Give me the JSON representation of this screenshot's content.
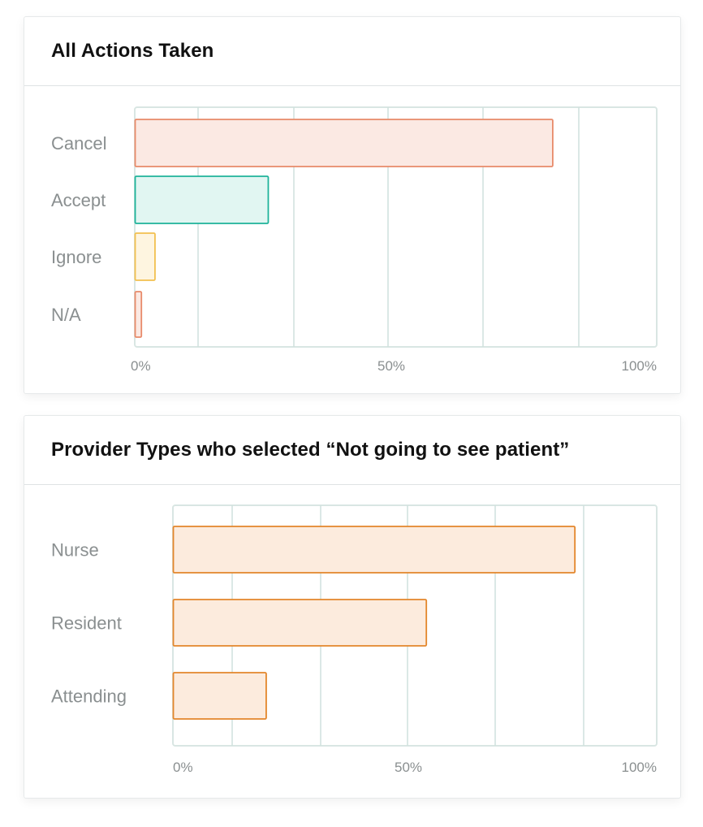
{
  "charts": [
    {
      "card_title": "All Actions Taken"
    },
    {
      "card_title": "Provider Types who selected “Not going to see patient”"
    }
  ],
  "chart_data": [
    {
      "type": "bar",
      "orientation": "horizontal",
      "title": "All Actions Taken",
      "categories": [
        "Cancel",
        "Accept",
        "Ignore",
        "N/A"
      ],
      "values": [
        80,
        25.5,
        3.8,
        1.2
      ],
      "unit": "%",
      "xlim": [
        0,
        100
      ],
      "x_tick_labels": [
        "0%",
        "50%",
        "100%"
      ],
      "grid": true,
      "bar_colors": [
        {
          "stroke": "#e88a6a",
          "fill": "#fbe9e3"
        },
        {
          "stroke": "#1eb39a",
          "fill": "#e1f6f2"
        },
        {
          "stroke": "#f2c04f",
          "fill": "#fef5e0"
        },
        {
          "stroke": "#e88a6a",
          "fill": "#fbe9e3"
        }
      ]
    },
    {
      "type": "bar",
      "orientation": "horizontal",
      "title": "Provider Types who selected “Not going to see patient”",
      "categories": [
        "Nurse",
        "Resident",
        "Attending"
      ],
      "values": [
        83,
        52.3,
        19.2
      ],
      "unit": "%",
      "xlim": [
        0,
        100
      ],
      "x_tick_labels": [
        "0%",
        "50%",
        "100%"
      ],
      "grid": true,
      "bar_colors": [
        {
          "stroke": "#e3862b",
          "fill": "#fcebdd"
        },
        {
          "stroke": "#e3862b",
          "fill": "#fcebdd"
        },
        {
          "stroke": "#e3862b",
          "fill": "#fcebdd"
        }
      ]
    }
  ],
  "colors": {
    "grid": "#cfe0dd",
    "frame": "#d9e6e3",
    "label": "#8a8f90",
    "title": "#111111"
  }
}
